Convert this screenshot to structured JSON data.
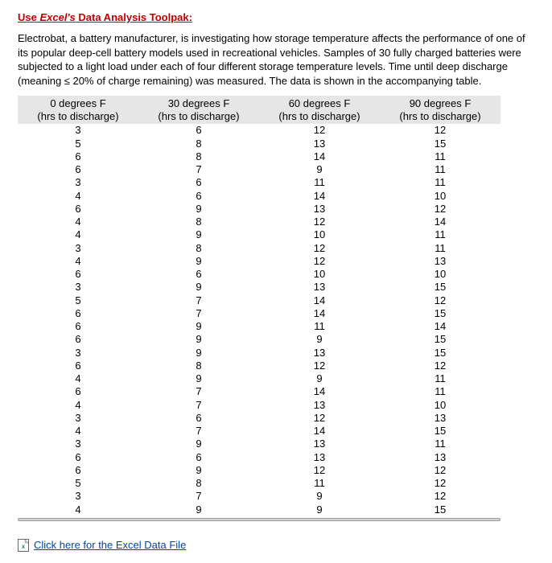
{
  "title_prefix": "Use ",
  "title_emph": "Excel's",
  "title_suffix": " Data Analysis Toolpak:",
  "description": "Electrobat, a battery manufacturer, is investigating how storage temperature affects the performance of one of its popular deep-cell battery models used in recreational vehicles. Samples of 30 fully charged batteries were subjected to a light load under each of four different storage temperature levels. Time until deep discharge (meaning ≤ 20% of charge remaining) was measured. The data is shown in the accompanying table.",
  "columns": [
    {
      "line1": "0 degrees F",
      "line2": "(hrs to discharge)"
    },
    {
      "line1": "30 degrees F",
      "line2": "(hrs to discharge)"
    },
    {
      "line1": "60 degrees F",
      "line2": "(hrs to discharge)"
    },
    {
      "line1": "90 degrees F",
      "line2": "(hrs to discharge)"
    }
  ],
  "rows": [
    [
      3,
      6,
      12,
      12
    ],
    [
      5,
      8,
      13,
      15
    ],
    [
      6,
      8,
      14,
      11
    ],
    [
      6,
      7,
      9,
      11
    ],
    [
      3,
      6,
      11,
      11
    ],
    [
      4,
      6,
      14,
      10
    ],
    [
      6,
      9,
      13,
      12
    ],
    [
      4,
      8,
      12,
      14
    ],
    [
      4,
      9,
      10,
      11
    ],
    [
      3,
      8,
      12,
      11
    ],
    [
      4,
      9,
      12,
      13
    ],
    [
      6,
      6,
      10,
      10
    ],
    [
      3,
      9,
      13,
      15
    ],
    [
      5,
      7,
      14,
      12
    ],
    [
      6,
      7,
      14,
      15
    ],
    [
      6,
      9,
      11,
      14
    ],
    [
      6,
      9,
      9,
      15
    ],
    [
      3,
      9,
      13,
      15
    ],
    [
      6,
      8,
      12,
      12
    ],
    [
      4,
      9,
      9,
      11
    ],
    [
      6,
      7,
      14,
      11
    ],
    [
      4,
      7,
      13,
      10
    ],
    [
      3,
      6,
      12,
      13
    ],
    [
      4,
      7,
      14,
      15
    ],
    [
      3,
      9,
      13,
      11
    ],
    [
      6,
      6,
      13,
      13
    ],
    [
      6,
      9,
      12,
      12
    ],
    [
      5,
      8,
      11,
      12
    ],
    [
      3,
      7,
      9,
      12
    ],
    [
      4,
      9,
      9,
      15
    ]
  ],
  "link_text": "Click here for the Excel Data File",
  "colors": {
    "title": "#c00000",
    "header_bg": "#e6e6e6",
    "link": "#0045aa"
  }
}
